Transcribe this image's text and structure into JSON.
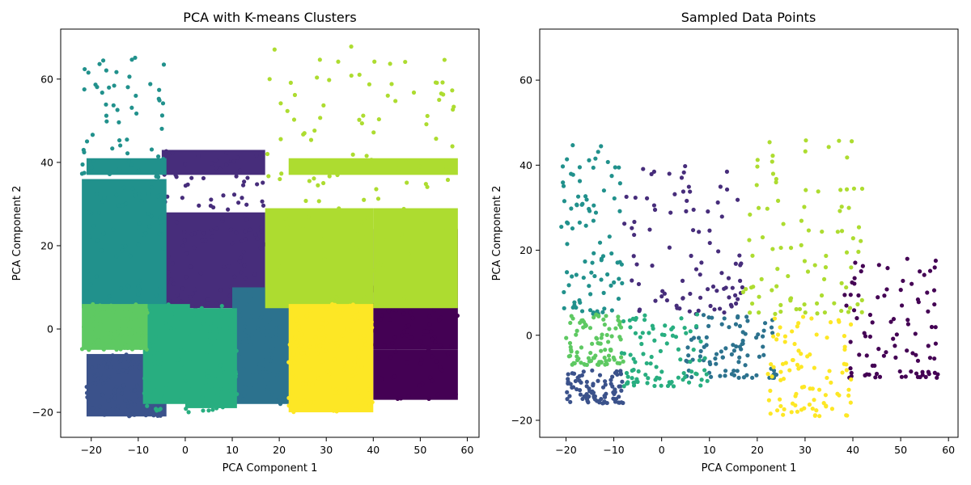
{
  "chart_data": [
    {
      "type": "scatter",
      "title": "PCA with K-means Clusters",
      "xlabel": "PCA Component 1",
      "ylabel": "PCA Component 2",
      "xlim": [
        -26.5,
        62.5
      ],
      "ylim": [
        -26,
        72
      ],
      "xticks": [
        -20,
        -10,
        0,
        10,
        20,
        30,
        40,
        50,
        60
      ],
      "yticks": [
        -20,
        0,
        20,
        40,
        60
      ],
      "grid": false,
      "colormap": [
        "#440154",
        "#472d7b",
        "#3b528b",
        "#2c728e",
        "#21918c",
        "#28ae80",
        "#5ec962",
        "#addc30",
        "#fde725"
      ],
      "clusters": [
        {
          "color": "#440154",
          "x_range": [
            39.5,
            58
          ],
          "y_range": [
            -17,
            24
          ],
          "dense_regions": [
            [
              40,
              58,
              -17,
              -5
            ],
            [
              40,
              58,
              -5,
              24
            ]
          ]
        },
        {
          "color": "#472d7b",
          "x_range": [
            -5,
            17
          ],
          "y_range": [
            5,
            43
          ],
          "dense_regions": [
            [
              -5,
              17,
              5,
              28
            ],
            [
              -5,
              17,
              37,
              43
            ]
          ]
        },
        {
          "color": "#3b528b",
          "x_range": [
            -21,
            -4
          ],
          "y_range": [
            -21,
            -6
          ],
          "dense_regions": [
            [
              -21,
              -4,
              -21,
              -6
            ]
          ]
        },
        {
          "color": "#2c728e",
          "x_range": [
            10,
            24
          ],
          "y_range": [
            -18,
            10
          ],
          "dense_regions": [
            [
              10,
              24,
              -18,
              10
            ]
          ]
        },
        {
          "color": "#21918c",
          "x_range": [
            -22,
            -4
          ],
          "y_range": [
            5,
            67
          ],
          "dense_regions": [
            [
              -22,
              -4,
              5,
              36
            ],
            [
              -21,
              -4,
              37,
              41
            ]
          ]
        },
        {
          "color": "#28ae80",
          "x_range": [
            -9,
            11
          ],
          "y_range": [
            -20,
            6
          ],
          "dense_regions": [
            [
              -9,
              1,
              -18,
              6
            ],
            [
              0,
              11,
              -19,
              5
            ]
          ]
        },
        {
          "color": "#5ec962",
          "x_range": [
            -22,
            -8
          ],
          "y_range": [
            -5,
            6
          ],
          "dense_regions": [
            [
              -22,
              -8,
              -5,
              6
            ]
          ]
        },
        {
          "color": "#addc30",
          "x_range": [
            17,
            58
          ],
          "y_range": [
            5,
            68
          ],
          "dense_regions": [
            [
              17,
              40,
              5,
              29
            ],
            [
              40,
              58,
              5,
              29
            ],
            [
              22,
              58,
              37,
              41
            ]
          ]
        },
        {
          "color": "#fde725",
          "x_range": [
            22,
            40
          ],
          "y_range": [
            -20,
            6
          ],
          "dense_regions": [
            [
              22,
              40,
              -20,
              6
            ]
          ]
        }
      ]
    },
    {
      "type": "scatter",
      "title": "Sampled Data Points",
      "xlabel": "PCA Component 1",
      "ylabel": "PCA Component 2",
      "xlim": [
        -25.5,
        62
      ],
      "ylim": [
        -24,
        72
      ],
      "xticks": [
        -20,
        -10,
        0,
        10,
        20,
        30,
        40,
        50,
        60
      ],
      "yticks": [
        -20,
        0,
        20,
        40,
        60
      ],
      "grid": false,
      "clusters": [
        {
          "color": "#440154",
          "x_range": [
            38,
            58
          ],
          "y_range": [
            -10,
            18
          ]
        },
        {
          "color": "#472d7b",
          "x_range": [
            -8,
            17
          ],
          "y_range": [
            5,
            40
          ]
        },
        {
          "color": "#3b528b",
          "x_range": [
            -20,
            -8
          ],
          "y_range": [
            -16,
            -8
          ]
        },
        {
          "color": "#2c728e",
          "x_range": [
            5,
            24
          ],
          "y_range": [
            -10,
            5
          ]
        },
        {
          "color": "#21918c",
          "x_range": [
            -21,
            -8
          ],
          "y_range": [
            5,
            45
          ]
        },
        {
          "color": "#28ae80",
          "x_range": [
            -9,
            10
          ],
          "y_range": [
            -12,
            5
          ]
        },
        {
          "color": "#5ec962",
          "x_range": [
            -20,
            -8
          ],
          "y_range": [
            -7,
            5
          ]
        },
        {
          "color": "#addc30",
          "x_range": [
            17,
            42
          ],
          "y_range": [
            5,
            46
          ]
        },
        {
          "color": "#fde725",
          "x_range": [
            22,
            40
          ],
          "y_range": [
            -19,
            5
          ]
        }
      ]
    }
  ]
}
